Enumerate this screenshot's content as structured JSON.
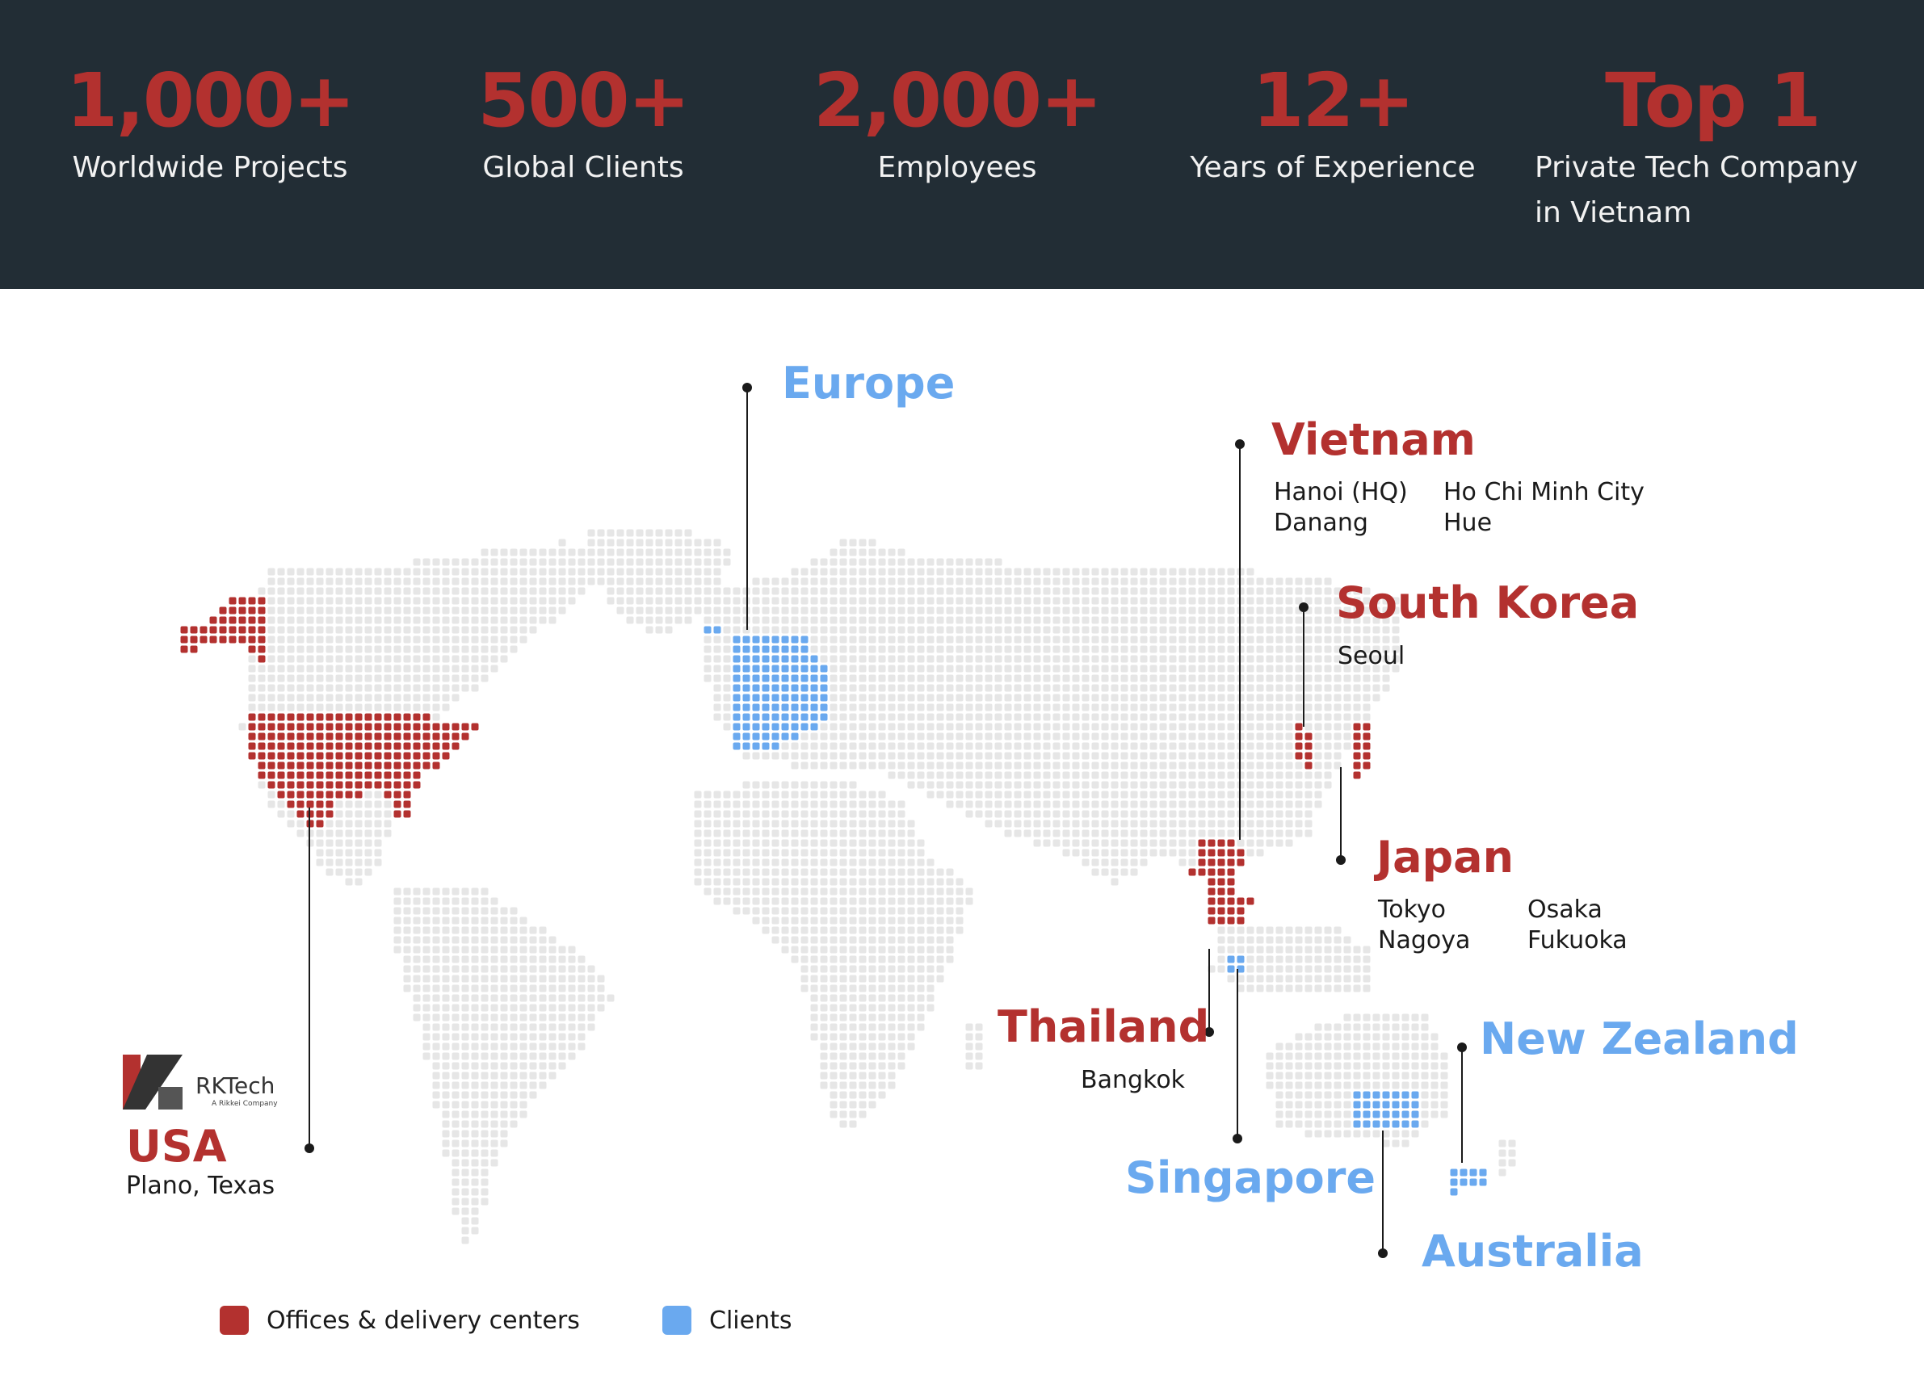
{
  "colors": {
    "dark_bg": "#222d35",
    "red": "#b3312f",
    "blue": "#6aa9ef",
    "dot_gray": "#e6e6e6",
    "line": "#1a1a1a"
  },
  "stats": [
    {
      "number": "1,000+",
      "caption_1": "Worldwide Projects",
      "caption_2": ""
    },
    {
      "number": "500+",
      "caption_1": "Global Clients",
      "caption_2": ""
    },
    {
      "number": "2,000+",
      "caption_1": "Employees",
      "caption_2": ""
    },
    {
      "number": "12+",
      "caption_1": "Years of Experience",
      "caption_2": ""
    },
    {
      "number": "Top 1",
      "caption_1": "Private Tech Company",
      "caption_2": "in Vietnam"
    }
  ],
  "regions": {
    "europe": {
      "name": "Europe",
      "type": "client"
    },
    "vietnam": {
      "name": "Vietnam",
      "type": "office",
      "cities": [
        "Hanoi (HQ)",
        "Danang",
        "Ho Chi Minh City",
        "Hue"
      ]
    },
    "south_korea": {
      "name": "South Korea",
      "type": "office",
      "cities": [
        "Seoul"
      ]
    },
    "japan": {
      "name": "Japan",
      "type": "office",
      "cities": [
        "Tokyo",
        "Nagoya",
        "Osaka",
        "Fukuoka"
      ]
    },
    "thailand": {
      "name": "Thailand",
      "type": "office",
      "cities": [
        "Bangkok"
      ]
    },
    "new_zealand": {
      "name": "New Zealand",
      "type": "client"
    },
    "singapore": {
      "name": "Singapore",
      "type": "client"
    },
    "australia": {
      "name": "Australia",
      "type": "client"
    },
    "usa": {
      "name": "USA",
      "type": "office",
      "cities": [
        "Plano, Texas"
      ]
    }
  },
  "logo": {
    "name": "RKTech",
    "sub": "A Rikkei Company",
    "icon": "rktech-logo-icon"
  },
  "legend": [
    {
      "label": "Offices & delivery centers",
      "color": "#b3312f"
    },
    {
      "label": "Clients",
      "color": "#6aa9ef"
    }
  ]
}
